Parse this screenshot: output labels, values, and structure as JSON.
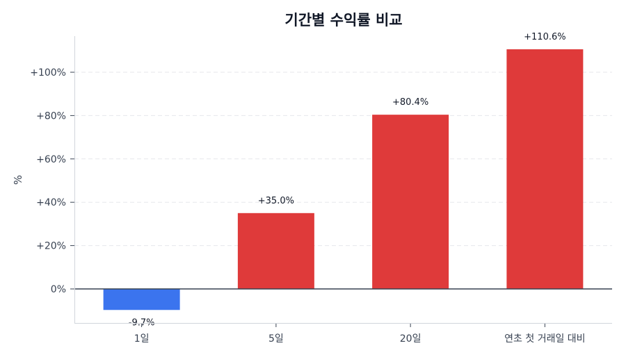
{
  "chart_data": {
    "type": "bar",
    "title": "기간별 수익률 비교",
    "xlabel": "",
    "ylabel": "%",
    "categories": [
      "1일",
      "5일",
      "20일",
      "연초 첫 거래일 대비"
    ],
    "values": [
      -9.7,
      35.0,
      80.4,
      110.6
    ],
    "value_labels": [
      "-9.7%",
      "+35.0%",
      "+80.4%",
      "+110.6%"
    ],
    "colors": [
      "#3b74ee",
      "#df3a3a",
      "#df3a3a",
      "#df3a3a"
    ],
    "positive_color": "#df3a3a",
    "negative_color": "#3b74ee",
    "ylim": [
      -15.7,
      116.5
    ],
    "yticks": [
      0,
      20,
      40,
      60,
      80,
      100
    ],
    "ytick_labels": [
      "0%",
      "+20%",
      "+40%",
      "+60%",
      "+80%",
      "+100%"
    ],
    "grid": "horizontal dashed",
    "legend": "none"
  }
}
